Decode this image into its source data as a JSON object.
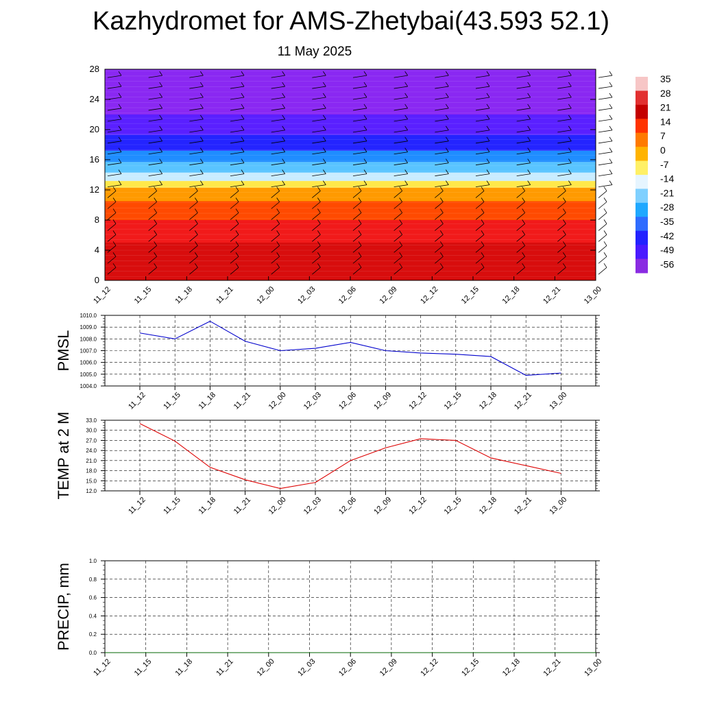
{
  "header": {
    "title": "Kazhydromet for AMS-Zhetybai(43.593 52.1)",
    "subtitle": "11 May 2025"
  },
  "chart_data": [
    {
      "type": "heatmap",
      "title": "",
      "xlabel": "",
      "ylabel": "",
      "categories": [
        "11_12",
        "11_15",
        "11_18",
        "11_21",
        "12_00",
        "12_03",
        "12_06",
        "12_09",
        "12_12",
        "12_15",
        "12_18",
        "12_21",
        "13_00"
      ],
      "ylim": [
        0,
        28
      ],
      "y_ticks": [
        "0",
        "4",
        "8",
        "12",
        "16",
        "20",
        "24",
        "28"
      ],
      "overlay": "wind barbs",
      "colorbar": {
        "labels": [
          "35",
          "28",
          "21",
          "14",
          "7",
          "0",
          "-7",
          "-14",
          "-21",
          "-28",
          "-35",
          "-42",
          "-49",
          "-56"
        ],
        "colors": [
          "#f7c6c6",
          "#e23030",
          "#c40000",
          "#ff3300",
          "#ff7a00",
          "#ffb300",
          "#fff066",
          "#e6f5ff",
          "#7fd0ff",
          "#1fa8ff",
          "#2f6cff",
          "#2222ff",
          "#4a1aff",
          "#8a2be2"
        ]
      },
      "bands": [
        {
          "from": 0,
          "to": 5,
          "color": "#d80d0d"
        },
        {
          "from": 5,
          "to": 8,
          "color": "#f11a1a"
        },
        {
          "from": 8,
          "to": 10.5,
          "color": "#ff4a00"
        },
        {
          "from": 10.5,
          "to": 12.3,
          "color": "#ff9a00"
        },
        {
          "from": 12.3,
          "to": 13.2,
          "color": "#ffe84a"
        },
        {
          "from": 13.2,
          "to": 14.3,
          "color": "#c9ecff"
        },
        {
          "from": 14.3,
          "to": 15.7,
          "color": "#59c4ff"
        },
        {
          "from": 15.7,
          "to": 17.2,
          "color": "#1f8dff"
        },
        {
          "from": 17.2,
          "to": 19.3,
          "color": "#2424ff"
        },
        {
          "from": 19.3,
          "to": 22,
          "color": "#5a20ff"
        },
        {
          "from": 22,
          "to": 28,
          "color": "#8a28f2"
        }
      ]
    },
    {
      "type": "line",
      "title": "",
      "xlabel": "",
      "ylabel": "PMSL",
      "categories": [
        "11_12",
        "11_15",
        "11_18",
        "11_21",
        "12_00",
        "12_03",
        "12_06",
        "12_09",
        "12_12",
        "12_15",
        "12_18",
        "12_21",
        "13_00"
      ],
      "series": [
        {
          "values": [
            1008.5,
            1008.0,
            1009.5,
            1007.8,
            1007.0,
            1007.2,
            1007.7,
            1007.0,
            1006.8,
            1006.7,
            1006.5,
            1004.9,
            1005.1
          ]
        }
      ],
      "ylim": [
        1004.0,
        1010.0
      ],
      "y_ticks": [
        "1004.0",
        "1005.0",
        "1006.0",
        "1007.0",
        "1008.0",
        "1009.0",
        "1010.0"
      ],
      "color": "#0000cc",
      "grid": true
    },
    {
      "type": "line",
      "title": "",
      "xlabel": "",
      "ylabel": "TEMP at 2 M",
      "categories": [
        "11_12",
        "11_15",
        "11_18",
        "11_21",
        "12_00",
        "12_03",
        "12_06",
        "12_09",
        "12_12",
        "12_15",
        "12_18",
        "12_21",
        "13_00"
      ],
      "series": [
        {
          "values": [
            32.0,
            26.8,
            19.0,
            15.3,
            12.7,
            14.5,
            21.0,
            24.8,
            27.5,
            27.0,
            21.8,
            19.5,
            17.2
          ]
        }
      ],
      "ylim": [
        12.0,
        33.0
      ],
      "y_ticks": [
        "12.0",
        "15.0",
        "18.0",
        "21.0",
        "24.0",
        "27.0",
        "30.0",
        "33.0"
      ],
      "color": "#dd0000",
      "grid": true
    },
    {
      "type": "line",
      "title": "",
      "xlabel": "",
      "ylabel": "PRECIP, mm",
      "categories": [
        "11_12",
        "11_15",
        "11_18",
        "11_21",
        "12_00",
        "12_03",
        "12_06",
        "12_09",
        "12_12",
        "12_15",
        "12_18",
        "12_21",
        "13_00"
      ],
      "series": [
        {
          "values": [
            0,
            0,
            0,
            0,
            0,
            0,
            0,
            0,
            0,
            0,
            0,
            0,
            0
          ]
        }
      ],
      "ylim": [
        0.0,
        1.0
      ],
      "y_ticks": [
        "0.0",
        "0.2",
        "0.4",
        "0.6",
        "0.8",
        "1.0"
      ],
      "color": "#006600",
      "grid": true
    }
  ]
}
